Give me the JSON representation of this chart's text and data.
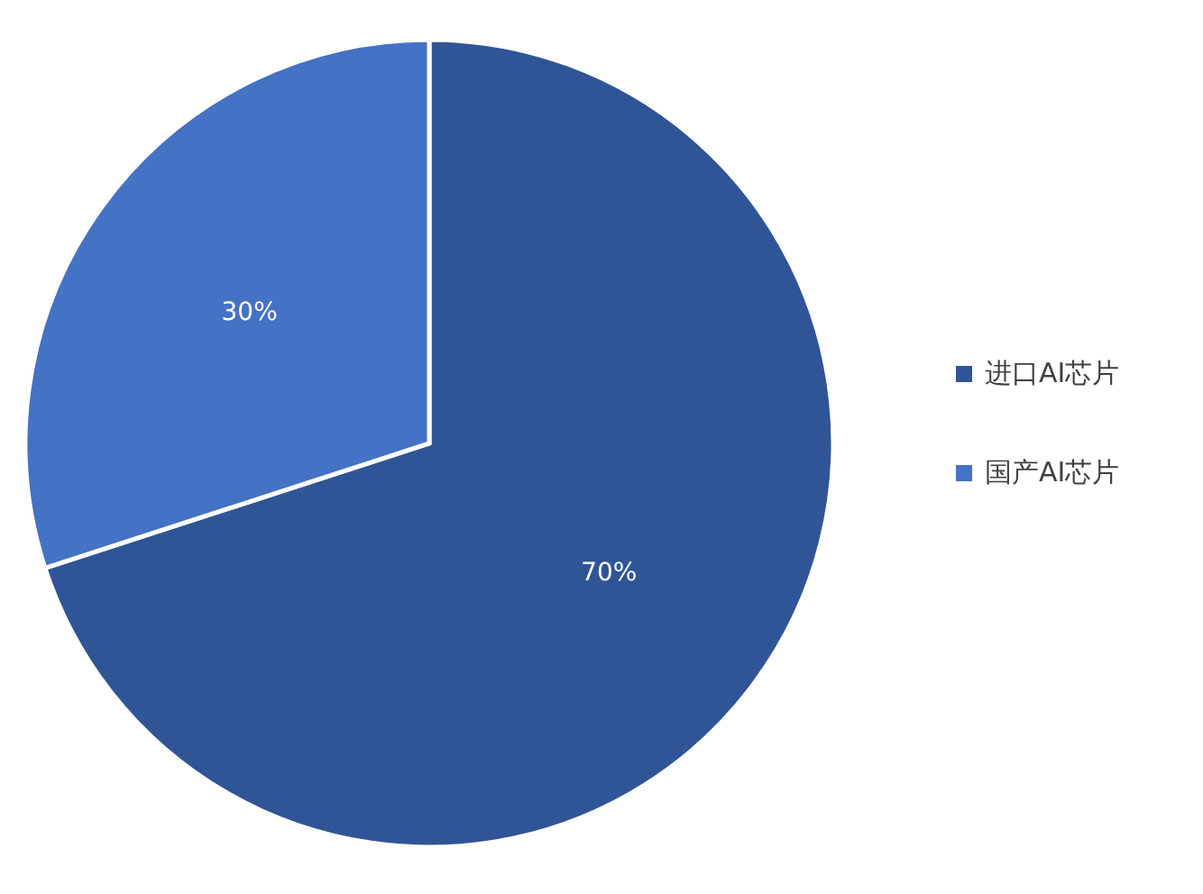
{
  "chart_data": {
    "type": "pie",
    "categories": [
      "进口AI芯片",
      "国产AI芯片"
    ],
    "values": [
      70,
      30
    ],
    "colors": [
      "#2f5597",
      "#4472c4"
    ],
    "value_labels": [
      "70%",
      "30%"
    ],
    "legend": "right"
  }
}
